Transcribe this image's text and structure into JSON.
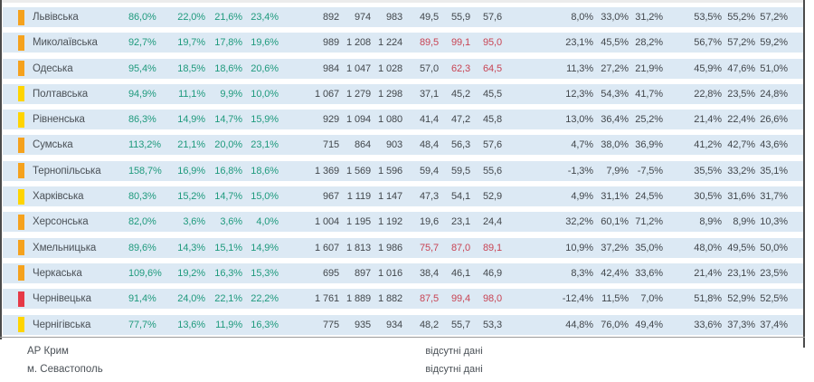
{
  "colors": {
    "band": "#dce9f4",
    "green": "#1f9a7d",
    "red": "#c84454",
    "dark": "#42474c",
    "indicator_orange": "#f5a21d",
    "indicator_yellow": "#ffd400",
    "indicator_red": "#e63946",
    "border": "#4b4b4b"
  },
  "table": {
    "rows": [
      {
        "name": "Львівська",
        "indicator": "orange",
        "k": "86,0%",
        "g": [
          "22,0%",
          "21,6%",
          "23,4%"
        ],
        "n": [
          "892",
          "974",
          "983"
        ],
        "d": [
          "49,5",
          "55,9",
          "57,6"
        ],
        "d_red": [
          false,
          false,
          false
        ],
        "p": [
          "8,0%",
          "33,0%",
          "31,2%"
        ],
        "q": [
          "53,5%",
          "55,2%",
          "57,2%"
        ]
      },
      {
        "name": "Миколаївська",
        "indicator": "orange",
        "k": "92,7%",
        "g": [
          "19,7%",
          "17,8%",
          "19,6%"
        ],
        "n": [
          "989",
          "1 208",
          "1 224"
        ],
        "d": [
          "89,5",
          "99,1",
          "95,0"
        ],
        "d_red": [
          true,
          true,
          true
        ],
        "p": [
          "23,1%",
          "45,5%",
          "28,2%"
        ],
        "q": [
          "56,7%",
          "57,2%",
          "59,2%"
        ]
      },
      {
        "name": "Одеська",
        "indicator": "orange",
        "k": "95,4%",
        "g": [
          "18,5%",
          "18,6%",
          "20,6%"
        ],
        "n": [
          "984",
          "1 047",
          "1 028"
        ],
        "d": [
          "57,0",
          "62,3",
          "64,5"
        ],
        "d_red": [
          false,
          true,
          true
        ],
        "p": [
          "11,3%",
          "27,2%",
          "21,9%"
        ],
        "q": [
          "45,9%",
          "47,6%",
          "51,0%"
        ]
      },
      {
        "name": "Полтавська",
        "indicator": "yellow",
        "k": "94,9%",
        "g": [
          "11,1%",
          "9,9%",
          "10,0%"
        ],
        "n": [
          "1 067",
          "1 279",
          "1 298"
        ],
        "d": [
          "37,1",
          "45,2",
          "45,5"
        ],
        "d_red": [
          false,
          false,
          false
        ],
        "p": [
          "12,3%",
          "54,3%",
          "41,7%"
        ],
        "q": [
          "22,8%",
          "23,5%",
          "24,8%"
        ]
      },
      {
        "name": "Рівненська",
        "indicator": "yellow",
        "k": "86,3%",
        "g": [
          "14,9%",
          "14,7%",
          "15,9%"
        ],
        "n": [
          "929",
          "1 094",
          "1 080"
        ],
        "d": [
          "41,4",
          "47,2",
          "45,8"
        ],
        "d_red": [
          false,
          false,
          false
        ],
        "p": [
          "13,0%",
          "36,4%",
          "25,2%"
        ],
        "q": [
          "21,4%",
          "22,4%",
          "26,6%"
        ]
      },
      {
        "name": "Сумська",
        "indicator": "orange",
        "k": "113,2%",
        "g": [
          "21,1%",
          "20,0%",
          "23,1%"
        ],
        "n": [
          "715",
          "864",
          "903"
        ],
        "d": [
          "48,4",
          "56,3",
          "57,6"
        ],
        "d_red": [
          false,
          false,
          false
        ],
        "p": [
          "4,7%",
          "38,0%",
          "36,9%"
        ],
        "q": [
          "41,2%",
          "42,7%",
          "43,6%"
        ]
      },
      {
        "name": "Тернопільська",
        "indicator": "orange",
        "k": "158,7%",
        "g": [
          "16,9%",
          "16,8%",
          "18,6%"
        ],
        "n": [
          "1 369",
          "1 569",
          "1 596"
        ],
        "d": [
          "59,4",
          "59,5",
          "55,6"
        ],
        "d_red": [
          false,
          false,
          false
        ],
        "p": [
          "-1,3%",
          "7,9%",
          "-7,5%"
        ],
        "q": [
          "35,5%",
          "33,2%",
          "35,1%"
        ]
      },
      {
        "name": "Харківська",
        "indicator": "yellow",
        "k": "80,3%",
        "g": [
          "15,2%",
          "14,7%",
          "15,0%"
        ],
        "n": [
          "967",
          "1 119",
          "1 147"
        ],
        "d": [
          "47,3",
          "54,1",
          "52,9"
        ],
        "d_red": [
          false,
          false,
          false
        ],
        "p": [
          "4,9%",
          "31,1%",
          "24,5%"
        ],
        "q": [
          "30,5%",
          "31,6%",
          "31,7%"
        ]
      },
      {
        "name": "Херсонська",
        "indicator": "orange",
        "k": "82,0%",
        "g": [
          "3,6%",
          "3,6%",
          "4,0%"
        ],
        "n": [
          "1 004",
          "1 195",
          "1 192"
        ],
        "d": [
          "19,6",
          "23,1",
          "24,4"
        ],
        "d_red": [
          false,
          false,
          false
        ],
        "p": [
          "32,2%",
          "60,1%",
          "71,2%"
        ],
        "q": [
          "8,9%",
          "8,9%",
          "10,3%"
        ]
      },
      {
        "name": "Хмельницька",
        "indicator": "orange",
        "k": "89,6%",
        "g": [
          "14,3%",
          "15,1%",
          "14,9%"
        ],
        "n": [
          "1 607",
          "1 813",
          "1 986"
        ],
        "d": [
          "75,7",
          "87,0",
          "89,1"
        ],
        "d_red": [
          true,
          true,
          true
        ],
        "p": [
          "10,9%",
          "37,2%",
          "35,0%"
        ],
        "q": [
          "48,0%",
          "49,5%",
          "50,0%"
        ]
      },
      {
        "name": "Черкаська",
        "indicator": "orange",
        "k": "109,6%",
        "g": [
          "19,2%",
          "16,3%",
          "15,3%"
        ],
        "n": [
          "695",
          "897",
          "1 016"
        ],
        "d": [
          "38,4",
          "46,1",
          "46,9"
        ],
        "d_red": [
          false,
          false,
          false
        ],
        "p": [
          "8,3%",
          "42,4%",
          "33,6%"
        ],
        "q": [
          "21,4%",
          "23,1%",
          "23,5%"
        ]
      },
      {
        "name": "Чернівецька",
        "indicator": "red",
        "k": "91,4%",
        "g": [
          "24,0%",
          "22,1%",
          "22,2%"
        ],
        "n": [
          "1 761",
          "1 889",
          "1 882"
        ],
        "d": [
          "87,5",
          "99,4",
          "98,0"
        ],
        "d_red": [
          true,
          true,
          true
        ],
        "p": [
          "-12,4%",
          "11,5%",
          "7,0%"
        ],
        "q": [
          "51,8%",
          "52,9%",
          "52,5%"
        ]
      },
      {
        "name": "Чернігівська",
        "indicator": "yellow",
        "k": "77,7%",
        "g": [
          "13,6%",
          "11,9%",
          "16,3%"
        ],
        "n": [
          "775",
          "935",
          "934"
        ],
        "d": [
          "48,2",
          "55,7",
          "53,3"
        ],
        "d_red": [
          false,
          false,
          false
        ],
        "p": [
          "44,8%",
          "76,0%",
          "49,4%"
        ],
        "q": [
          "33,6%",
          "37,3%",
          "37,4%"
        ]
      }
    ],
    "footer": [
      {
        "name": "АР Крим",
        "note": "відсутні дані"
      },
      {
        "name": "м. Севастополь",
        "note": "відсутні дані"
      }
    ]
  }
}
